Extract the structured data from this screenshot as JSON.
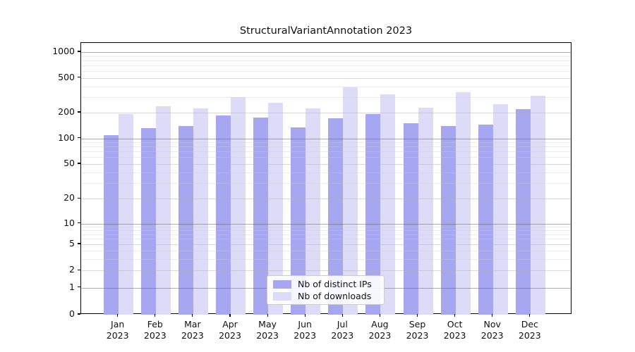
{
  "title": "StructuralVariantAnnotation 2023",
  "chart_data": {
    "type": "bar",
    "title": "StructuralVariantAnnotation 2023",
    "categories": [
      "Jan\n2023",
      "Feb\n2023",
      "Mar\n2023",
      "Apr\n2023",
      "May\n2023",
      "Jun\n2023",
      "Jul\n2023",
      "Aug\n2023",
      "Sep\n2023",
      "Oct\n2023",
      "Nov\n2023",
      "Dec\n2023"
    ],
    "series": [
      {
        "name": "Nb of distinct IPs",
        "color": "#a6a6f1",
        "values": [
          110,
          131,
          141,
          184,
          175,
          134,
          172,
          194,
          152,
          141,
          145,
          218
        ]
      },
      {
        "name": "Nb of downloads",
        "color": "#dcdcf8",
        "values": [
          192,
          236,
          223,
          300,
          259,
          222,
          392,
          321,
          229,
          341,
          248,
          311
        ]
      }
    ],
    "yscale": "symlog",
    "y_ticks": [
      0,
      1,
      2,
      5,
      10,
      20,
      50,
      100,
      200,
      500,
      1000
    ],
    "ylim": [
      0,
      1400
    ],
    "grid": true,
    "legend_position": "lower center"
  }
}
